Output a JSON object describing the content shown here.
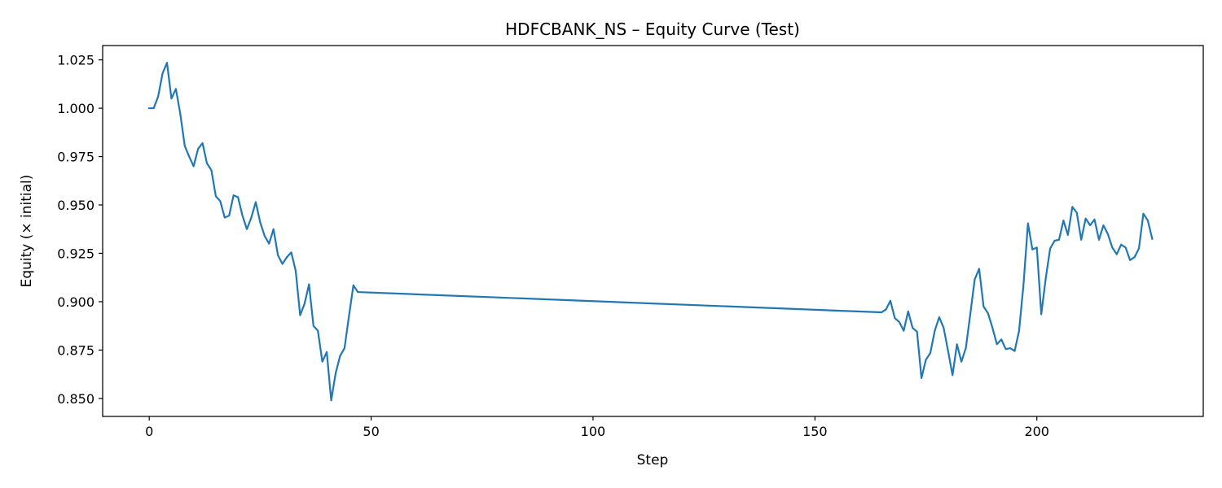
{
  "chart_data": {
    "type": "line",
    "title": "HDFCBANK_NS – Equity Curve (Test)",
    "xlabel": "Step",
    "ylabel": "Equity (× initial)",
    "xlim": [
      -10.5,
      237.5
    ],
    "ylim": [
      0.8407,
      1.0324
    ],
    "xticks": [
      0,
      50,
      100,
      150,
      200
    ],
    "yticks": [
      0.85,
      0.875,
      0.9,
      0.925,
      0.95,
      0.975,
      1.0,
      1.025
    ],
    "grid": false,
    "legend": "none",
    "series": [
      {
        "color": "#1f77b4",
        "points": [
          [
            0,
            1.0
          ],
          [
            1,
            1.0
          ],
          [
            2,
            1.006
          ],
          [
            3,
            1.018
          ],
          [
            4,
            1.0235
          ],
          [
            5,
            1.005
          ],
          [
            6,
            1.01
          ],
          [
            7,
            0.997
          ],
          [
            8,
            0.9805
          ],
          [
            9,
            0.975
          ],
          [
            10,
            0.97
          ],
          [
            11,
            0.979
          ],
          [
            12,
            0.982
          ],
          [
            13,
            0.9715
          ],
          [
            14,
            0.968
          ],
          [
            15,
            0.9545
          ],
          [
            16,
            0.952
          ],
          [
            17,
            0.9435
          ],
          [
            18,
            0.9445
          ],
          [
            19,
            0.955
          ],
          [
            20,
            0.954
          ],
          [
            21,
            0.9445
          ],
          [
            22,
            0.9375
          ],
          [
            23,
            0.9435
          ],
          [
            24,
            0.9515
          ],
          [
            25,
            0.941
          ],
          [
            26,
            0.934
          ],
          [
            27,
            0.93
          ],
          [
            28,
            0.9375
          ],
          [
            29,
            0.924
          ],
          [
            30,
            0.9195
          ],
          [
            31,
            0.923
          ],
          [
            32,
            0.9255
          ],
          [
            33,
            0.916
          ],
          [
            34,
            0.893
          ],
          [
            35,
            0.899
          ],
          [
            36,
            0.909
          ],
          [
            37,
            0.8875
          ],
          [
            38,
            0.885
          ],
          [
            39,
            0.869
          ],
          [
            40,
            0.874
          ],
          [
            41,
            0.849
          ],
          [
            42,
            0.863
          ],
          [
            43,
            0.872
          ],
          [
            44,
            0.876
          ],
          [
            45,
            0.8925
          ],
          [
            46,
            0.9085
          ],
          [
            47,
            0.905
          ],
          [
            165,
            0.8945
          ],
          [
            166,
            0.896
          ],
          [
            167,
            0.9005
          ],
          [
            168,
            0.8915
          ],
          [
            169,
            0.8895
          ],
          [
            170,
            0.885
          ],
          [
            171,
            0.895
          ],
          [
            172,
            0.8865
          ],
          [
            173,
            0.8845
          ],
          [
            174,
            0.8605
          ],
          [
            175,
            0.87
          ],
          [
            176,
            0.8735
          ],
          [
            177,
            0.885
          ],
          [
            178,
            0.892
          ],
          [
            179,
            0.8865
          ],
          [
            180,
            0.8745
          ],
          [
            181,
            0.862
          ],
          [
            182,
            0.878
          ],
          [
            183,
            0.869
          ],
          [
            184,
            0.876
          ],
          [
            185,
            0.8935
          ],
          [
            186,
            0.9115
          ],
          [
            187,
            0.917
          ],
          [
            188,
            0.8975
          ],
          [
            189,
            0.894
          ],
          [
            190,
            0.8865
          ],
          [
            191,
            0.878
          ],
          [
            192,
            0.8805
          ],
          [
            193,
            0.8755
          ],
          [
            194,
            0.876
          ],
          [
            195,
            0.8745
          ],
          [
            196,
            0.885
          ],
          [
            197,
            0.909
          ],
          [
            198,
            0.9405
          ],
          [
            199,
            0.927
          ],
          [
            200,
            0.928
          ],
          [
            201,
            0.8935
          ],
          [
            202,
            0.912
          ],
          [
            203,
            0.9275
          ],
          [
            204,
            0.9315
          ],
          [
            205,
            0.932
          ],
          [
            206,
            0.942
          ],
          [
            207,
            0.9345
          ],
          [
            208,
            0.949
          ],
          [
            209,
            0.946
          ],
          [
            210,
            0.932
          ],
          [
            211,
            0.943
          ],
          [
            212,
            0.9395
          ],
          [
            213,
            0.9425
          ],
          [
            214,
            0.932
          ],
          [
            215,
            0.9395
          ],
          [
            216,
            0.935
          ],
          [
            217,
            0.928
          ],
          [
            218,
            0.9245
          ],
          [
            219,
            0.9295
          ],
          [
            220,
            0.928
          ],
          [
            221,
            0.9215
          ],
          [
            222,
            0.923
          ],
          [
            223,
            0.9275
          ],
          [
            224,
            0.9455
          ],
          [
            225,
            0.942
          ],
          [
            226,
            0.9325
          ]
        ]
      }
    ]
  }
}
